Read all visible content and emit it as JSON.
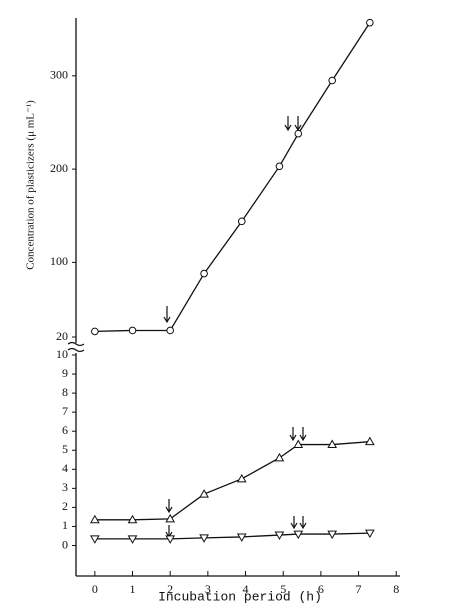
{
  "chart_data": [
    {
      "type": "line",
      "ylabel": "Concentration of plasticizers (μ mL⁻¹)",
      "xlim": [
        -0.5,
        8.1
      ],
      "ylim": [
        20,
        362
      ],
      "yticks": [
        20,
        100,
        200,
        300
      ],
      "series": [
        {
          "marker": "circle",
          "color": "#111111",
          "x": [
            0,
            1,
            2,
            2.9,
            3.9,
            4.9,
            5.4,
            6.3,
            7.3
          ],
          "values": [
            26,
            27,
            27,
            88,
            144,
            203,
            238,
            295,
            357
          ]
        }
      ]
    },
    {
      "type": "line",
      "xlabel": "Incubation period (h)",
      "xlim": [
        -0.5,
        8.1
      ],
      "ylim": [
        -1.6,
        10
      ],
      "xticks": [
        0,
        1,
        2,
        3,
        4,
        5,
        6,
        7,
        8
      ],
      "yticks": [
        0,
        1,
        2,
        3,
        4,
        5,
        6,
        7,
        8,
        9,
        10
      ],
      "series": [
        {
          "marker": "triangle-up",
          "color": "#111111",
          "x": [
            0,
            1,
            2,
            2.9,
            3.9,
            4.9,
            5.4,
            6.3,
            7.3
          ],
          "values": [
            1.35,
            1.35,
            1.4,
            2.7,
            3.5,
            4.6,
            5.3,
            5.3,
            5.45
          ]
        },
        {
          "marker": "triangle-down",
          "color": "#111111",
          "x": [
            0,
            1,
            2,
            2.9,
            3.9,
            4.9,
            5.4,
            6.3,
            7.3
          ],
          "values": [
            0.35,
            0.35,
            0.35,
            0.4,
            0.45,
            0.55,
            0.6,
            0.6,
            0.65
          ]
        }
      ]
    }
  ]
}
